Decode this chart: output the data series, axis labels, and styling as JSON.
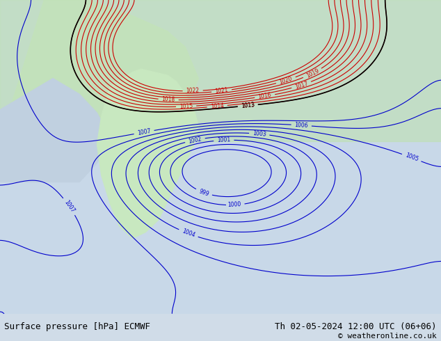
{
  "title_left": "Surface pressure [hPa] ECMWF",
  "title_right": "Th 02-05-2024 12:00 UTC (06+06)",
  "copyright": "© weatheronline.co.uk",
  "bg_color": "#c8d8e8",
  "land_color_low": "#b8e0b0",
  "land_color_high": "#e8c8a0",
  "footer_bg": "#e0e0e0",
  "contour_color_blue": "#0000cc",
  "contour_color_red": "#cc0000",
  "contour_color_black": "#000000",
  "label_color_blue": "#0000cc",
  "label_color_red": "#cc0000",
  "label_color_black": "#000000",
  "figsize": [
    6.34,
    4.9
  ],
  "dpi": 100
}
